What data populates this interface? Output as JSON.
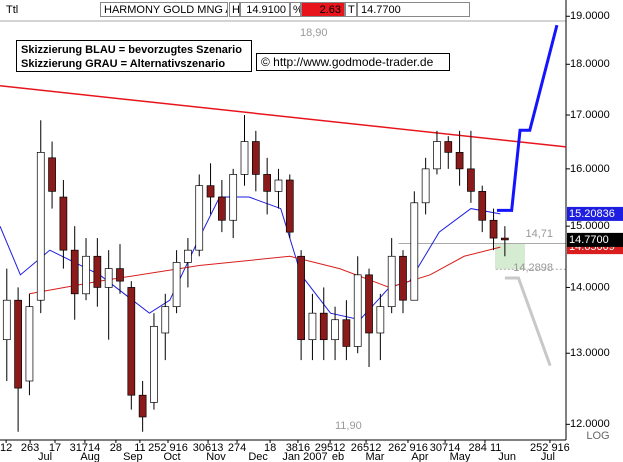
{
  "header": [
    "Ttl",
    "HARMONY GOLD MNG A",
    "H",
    "14.9100",
    "%",
    "2.63",
    "T",
    "14.7700"
  ],
  "notes": [
    "Skizzierung BLAU = bevorzugtes Szenario",
    "Skizzierung GRAU = Alternativszenario"
  ],
  "copyright": "© http://www.godmode-trader.de",
  "chart_data": {
    "type": "candlestick",
    "log": true,
    "log_label": "LOG",
    "ylim": [
      11.79,
      18.92
    ],
    "xlim": [
      0,
      250
    ],
    "yticks": [
      {
        "value": 19,
        "label": "19.0000"
      },
      {
        "value": 18,
        "label": "18.0000"
      },
      {
        "value": 17,
        "label": "17.0000"
      },
      {
        "value": 16,
        "label": "16.0000"
      },
      {
        "value": 15,
        "label": "15.0000"
      },
      {
        "value": 14,
        "label": "14.0000"
      },
      {
        "value": 13,
        "label": "13.0000"
      },
      {
        "value": 12,
        "label": "12.0000"
      }
    ],
    "xticks": [
      {
        "value": 2.7,
        "label": "12"
      },
      {
        "value": 13.3,
        "label": "263"
      },
      {
        "value": 24.3,
        "label": "17"
      },
      {
        "value": 37.5,
        "label": "31714"
      },
      {
        "value": 51.2,
        "label": "28"
      },
      {
        "value": 61.8,
        "label": "11"
      },
      {
        "value": 74.2,
        "label": "252 916"
      },
      {
        "value": 91.9,
        "label": "30613"
      },
      {
        "value": 104.7,
        "label": "274"
      },
      {
        "value": 119.3,
        "label": "18"
      },
      {
        "value": 131.6,
        "label": "3816"
      },
      {
        "value": 145.8,
        "label": "29512"
      },
      {
        "value": 161.7,
        "label": "26512"
      },
      {
        "value": 180.2,
        "label": "262 916"
      },
      {
        "value": 196.6,
        "label": "30714"
      },
      {
        "value": 214.2,
        "label": "284 11"
      },
      {
        "value": 242.9,
        "label": "252 916"
      }
    ],
    "month_ticks": [
      {
        "value": 19.9,
        "label": "Jul"
      },
      {
        "value": 39.8,
        "label": "Aug"
      },
      {
        "value": 58.7,
        "label": "Sep"
      },
      {
        "value": 76,
        "label": "Oct"
      },
      {
        "value": 95.4,
        "label": "Nov"
      },
      {
        "value": 114,
        "label": "Dec"
      },
      {
        "value": 134.7,
        "label": "Jan 2007"
      },
      {
        "value": 149.3,
        "label": "eb"
      },
      {
        "value": 165.6,
        "label": "Mar"
      },
      {
        "value": 185.5,
        "label": "Apr"
      },
      {
        "value": 203.2,
        "label": "May"
      },
      {
        "value": 224,
        "label": "Jun"
      },
      {
        "value": 242,
        "label": "Jul"
      }
    ],
    "up_color": "#ffffff",
    "down_color": "#8b1a1a",
    "x": [
      3,
      8,
      13,
      18,
      23,
      28,
      33,
      38,
      43,
      48,
      53,
      58,
      63,
      68,
      73,
      78,
      83,
      88,
      93,
      98,
      103,
      108,
      113,
      118,
      123,
      128,
      133,
      138,
      143,
      148,
      153,
      158,
      163,
      168,
      173,
      178,
      183,
      188,
      193,
      198,
      203,
      208,
      213,
      218,
      223
    ],
    "open": [
      13.2,
      13.8,
      12.6,
      13.8,
      16.2,
      15.5,
      14.6,
      13.9,
      14.5,
      14.0,
      14.3,
      14.0,
      12.4,
      12.3,
      13.3,
      13.7,
      14.4,
      14.6,
      15.7,
      15.5,
      15.1,
      15.9,
      16.5,
      15.9,
      15.6,
      15.8,
      14.5,
      13.2,
      13.6,
      13.2,
      13.5,
      13.1,
      14.2,
      13.3,
      13.7,
      14.5,
      13.8,
      15.4,
      16.0,
      16.5,
      16.3,
      16.0,
      15.6,
      15.1,
      14.8
    ],
    "high": [
      14.3,
      14.0,
      13.9,
      16.9,
      16.5,
      15.8,
      15.0,
      14.8,
      14.8,
      14.6,
      14.7,
      14.1,
      12.6,
      13.6,
      13.9,
      14.6,
      14.8,
      15.9,
      16.1,
      15.8,
      16.0,
      17.0,
      16.7,
      16.2,
      16.0,
      15.9,
      14.6,
      13.9,
      14.0,
      13.7,
      13.8,
      14.5,
      14.3,
      13.9,
      14.8,
      14.6,
      15.6,
      16.2,
      16.7,
      16.6,
      16.7,
      16.7,
      15.7,
      15.3,
      15.0
    ],
    "low": [
      12.6,
      11.9,
      12.4,
      13.6,
      15.3,
      14.3,
      13.5,
      13.8,
      13.7,
      13.2,
      13.9,
      12.2,
      11.9,
      12.2,
      12.9,
      13.6,
      14.0,
      14.5,
      15.2,
      14.9,
      14.8,
      15.7,
      15.6,
      15.2,
      15.3,
      14.8,
      12.9,
      12.9,
      12.9,
      12.9,
      12.9,
      13.0,
      12.8,
      12.9,
      13.6,
      13.6,
      13.8,
      15.2,
      15.9,
      16.0,
      15.7,
      15.4,
      14.9,
      14.6,
      14.5
    ],
    "close": [
      13.8,
      12.5,
      13.7,
      16.3,
      15.6,
      14.6,
      13.9,
      14.5,
      14.0,
      14.3,
      14.1,
      12.4,
      12.1,
      13.4,
      13.7,
      14.4,
      14.6,
      15.7,
      15.5,
      15.1,
      15.9,
      16.5,
      15.9,
      15.6,
      15.8,
      14.9,
      13.2,
      13.6,
      13.2,
      13.5,
      13.1,
      14.2,
      13.3,
      13.7,
      14.5,
      13.8,
      15.4,
      16.0,
      16.5,
      16.3,
      16.0,
      15.6,
      15.1,
      14.8,
      14.77
    ],
    "lines": [
      {
        "color": "#1e1ee0",
        "x": [
          0,
          9,
          22,
          44,
          66,
          75,
          88,
          97,
          110,
          124,
          133,
          146,
          159,
          172,
          181,
          194,
          208,
          221
        ],
        "values": [
          15.0,
          14.2,
          14.6,
          14.2,
          13.6,
          13.8,
          14.8,
          15.5,
          15.5,
          15.3,
          14.2,
          13.6,
          13.5,
          14.0,
          14.1,
          14.9,
          15.3,
          15.21
        ]
      },
      {
        "color": "#d81e1e",
        "x": [
          13,
          44,
          88,
          128,
          150,
          172,
          190,
          205,
          221
        ],
        "values": [
          13.9,
          14.1,
          14.35,
          14.5,
          14.3,
          14.0,
          14.2,
          14.5,
          14.65
        ]
      },
      {
        "color": "#e8141c",
        "x": [
          0,
          250
        ],
        "values": [
          17.57,
          16.4
        ]
      }
    ],
    "scenarios": [
      {
        "color": "#1414ff",
        "x": [
          219.5,
          226,
          229.7,
          234,
          246
        ],
        "values": [
          15.27,
          15.27,
          16.71,
          16.71,
          18.81
        ]
      },
      {
        "color": "#c8c8c8",
        "x": [
          223,
          229,
          243
        ],
        "values": [
          14.15,
          14.15,
          12.82
        ]
      }
    ],
    "levels": [
      {
        "value": 18.9,
        "label": "18,90",
        "x_from": 0,
        "dashed": false
      },
      {
        "value": 11.9,
        "label": "11,90",
        "x_from": 250,
        "dashed": false
      },
      {
        "value": 14.71,
        "label": "14,71",
        "x_from": 176,
        "dashed": false
      },
      {
        "value": 14.2898,
        "label": "14,2898",
        "x_from": 219,
        "dashed": true
      }
    ],
    "price_tags": [
      {
        "value": 15.20836,
        "color": "#1e1ee0"
      },
      {
        "value": 14.65009,
        "color": "#d81e1e"
      },
      {
        "value": 14.77,
        "label": "14.7700",
        "color": "#000000"
      }
    ]
  }
}
